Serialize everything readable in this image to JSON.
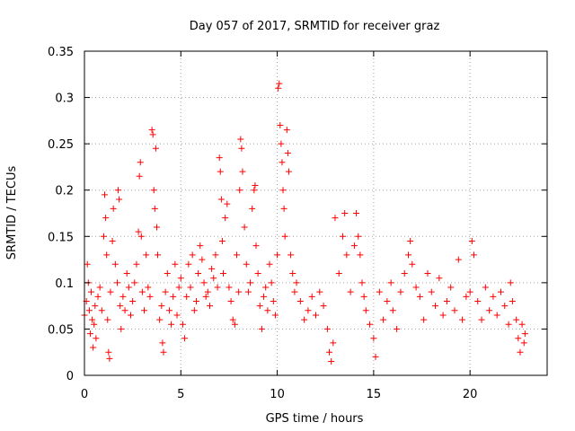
{
  "chart_data": {
    "type": "scatter",
    "title": "Day 057 of 2017, SRMTID for receiver graz",
    "xlabel": "GPS time / hours",
    "ylabel": "SRMTID / TECUs",
    "xlim": [
      0,
      24
    ],
    "ylim": [
      0,
      0.35
    ],
    "xticks": [
      0,
      5,
      10,
      15,
      20
    ],
    "xtick_labels": [
      "0",
      "5",
      "10",
      "15",
      "20"
    ],
    "yticks": [
      0,
      0.05,
      0.1,
      0.15,
      0.2,
      0.25,
      0.3,
      0.35
    ],
    "ytick_labels": [
      "0",
      "0.05",
      "0.1",
      "0.15",
      "0.2",
      "0.25",
      "0.3",
      "0.35"
    ],
    "grid": true,
    "marker": "+",
    "colors": {
      "series": "#ff0000",
      "grid": "#a0a0a0",
      "axis": "#000000"
    },
    "points": [
      [
        0.0,
        0.065
      ],
      [
        0.1,
        0.08
      ],
      [
        0.15,
        0.12
      ],
      [
        0.2,
        0.1
      ],
      [
        0.25,
        0.07
      ],
      [
        0.3,
        0.045
      ],
      [
        0.35,
        0.09
      ],
      [
        0.4,
        0.06
      ],
      [
        0.45,
        0.03
      ],
      [
        0.5,
        0.055
      ],
      [
        0.55,
        0.075
      ],
      [
        0.6,
        0.04
      ],
      [
        0.7,
        0.085
      ],
      [
        0.8,
        0.095
      ],
      [
        0.9,
        0.07
      ],
      [
        1.0,
        0.15
      ],
      [
        1.05,
        0.195
      ],
      [
        1.1,
        0.17
      ],
      [
        1.15,
        0.13
      ],
      [
        1.2,
        0.06
      ],
      [
        1.25,
        0.025
      ],
      [
        1.3,
        0.018
      ],
      [
        1.35,
        0.09
      ],
      [
        1.45,
        0.145
      ],
      [
        1.5,
        0.18
      ],
      [
        1.6,
        0.12
      ],
      [
        1.7,
        0.1
      ],
      [
        1.75,
        0.2
      ],
      [
        1.8,
        0.19
      ],
      [
        1.85,
        0.075
      ],
      [
        1.9,
        0.05
      ],
      [
        2.0,
        0.085
      ],
      [
        2.1,
        0.07
      ],
      [
        2.2,
        0.11
      ],
      [
        2.3,
        0.095
      ],
      [
        2.4,
        0.065
      ],
      [
        2.5,
        0.08
      ],
      [
        2.6,
        0.1
      ],
      [
        2.7,
        0.12
      ],
      [
        2.8,
        0.155
      ],
      [
        2.85,
        0.215
      ],
      [
        2.9,
        0.23
      ],
      [
        2.95,
        0.15
      ],
      [
        3.0,
        0.09
      ],
      [
        3.1,
        0.07
      ],
      [
        3.2,
        0.13
      ],
      [
        3.3,
        0.095
      ],
      [
        3.4,
        0.085
      ],
      [
        3.5,
        0.265
      ],
      [
        3.55,
        0.26
      ],
      [
        3.6,
        0.2
      ],
      [
        3.65,
        0.18
      ],
      [
        3.7,
        0.245
      ],
      [
        3.75,
        0.16
      ],
      [
        3.8,
        0.13
      ],
      [
        3.9,
        0.06
      ],
      [
        4.0,
        0.075
      ],
      [
        4.05,
        0.035
      ],
      [
        4.1,
        0.025
      ],
      [
        4.2,
        0.09
      ],
      [
        4.3,
        0.11
      ],
      [
        4.4,
        0.07
      ],
      [
        4.5,
        0.055
      ],
      [
        4.6,
        0.085
      ],
      [
        4.7,
        0.12
      ],
      [
        4.8,
        0.065
      ],
      [
        4.9,
        0.095
      ],
      [
        5.0,
        0.105
      ],
      [
        5.1,
        0.055
      ],
      [
        5.2,
        0.04
      ],
      [
        5.3,
        0.085
      ],
      [
        5.4,
        0.12
      ],
      [
        5.5,
        0.095
      ],
      [
        5.6,
        0.13
      ],
      [
        5.7,
        0.07
      ],
      [
        5.8,
        0.08
      ],
      [
        5.9,
        0.11
      ],
      [
        6.0,
        0.14
      ],
      [
        6.1,
        0.125
      ],
      [
        6.2,
        0.1
      ],
      [
        6.3,
        0.085
      ],
      [
        6.4,
        0.09
      ],
      [
        6.5,
        0.075
      ],
      [
        6.6,
        0.115
      ],
      [
        6.7,
        0.105
      ],
      [
        6.8,
        0.13
      ],
      [
        6.9,
        0.095
      ],
      [
        7.0,
        0.235
      ],
      [
        7.05,
        0.22
      ],
      [
        7.1,
        0.19
      ],
      [
        7.15,
        0.145
      ],
      [
        7.2,
        0.11
      ],
      [
        7.3,
        0.17
      ],
      [
        7.4,
        0.185
      ],
      [
        7.5,
        0.095
      ],
      [
        7.6,
        0.08
      ],
      [
        7.7,
        0.06
      ],
      [
        7.8,
        0.055
      ],
      [
        7.9,
        0.13
      ],
      [
        8.0,
        0.09
      ],
      [
        8.05,
        0.2
      ],
      [
        8.1,
        0.255
      ],
      [
        8.15,
        0.245
      ],
      [
        8.2,
        0.22
      ],
      [
        8.3,
        0.16
      ],
      [
        8.4,
        0.12
      ],
      [
        8.5,
        0.09
      ],
      [
        8.6,
        0.1
      ],
      [
        8.7,
        0.18
      ],
      [
        8.8,
        0.2
      ],
      [
        8.85,
        0.205
      ],
      [
        8.9,
        0.14
      ],
      [
        9.0,
        0.11
      ],
      [
        9.1,
        0.075
      ],
      [
        9.2,
        0.05
      ],
      [
        9.3,
        0.085
      ],
      [
        9.4,
        0.095
      ],
      [
        9.5,
        0.07
      ],
      [
        9.6,
        0.12
      ],
      [
        9.7,
        0.1
      ],
      [
        9.8,
        0.08
      ],
      [
        9.9,
        0.065
      ],
      [
        10.0,
        0.13
      ],
      [
        10.05,
        0.31
      ],
      [
        10.1,
        0.315
      ],
      [
        10.15,
        0.27
      ],
      [
        10.2,
        0.25
      ],
      [
        10.25,
        0.23
      ],
      [
        10.3,
        0.2
      ],
      [
        10.35,
        0.18
      ],
      [
        10.4,
        0.15
      ],
      [
        10.5,
        0.265
      ],
      [
        10.55,
        0.24
      ],
      [
        10.6,
        0.22
      ],
      [
        10.7,
        0.13
      ],
      [
        10.8,
        0.11
      ],
      [
        10.9,
        0.09
      ],
      [
        11.0,
        0.1
      ],
      [
        11.2,
        0.08
      ],
      [
        11.4,
        0.06
      ],
      [
        11.6,
        0.07
      ],
      [
        11.8,
        0.085
      ],
      [
        12.0,
        0.065
      ],
      [
        12.2,
        0.09
      ],
      [
        12.4,
        0.075
      ],
      [
        12.6,
        0.05
      ],
      [
        12.7,
        0.025
      ],
      [
        12.8,
        0.015
      ],
      [
        12.9,
        0.035
      ],
      [
        13.0,
        0.17
      ],
      [
        13.2,
        0.11
      ],
      [
        13.4,
        0.15
      ],
      [
        13.5,
        0.175
      ],
      [
        13.6,
        0.13
      ],
      [
        13.8,
        0.09
      ],
      [
        14.0,
        0.14
      ],
      [
        14.1,
        0.175
      ],
      [
        14.2,
        0.15
      ],
      [
        14.3,
        0.13
      ],
      [
        14.4,
        0.1
      ],
      [
        14.5,
        0.085
      ],
      [
        14.6,
        0.07
      ],
      [
        14.8,
        0.055
      ],
      [
        15.0,
        0.04
      ],
      [
        15.1,
        0.02
      ],
      [
        15.3,
        0.09
      ],
      [
        15.5,
        0.06
      ],
      [
        15.7,
        0.08
      ],
      [
        15.9,
        0.1
      ],
      [
        16.0,
        0.07
      ],
      [
        16.2,
        0.05
      ],
      [
        16.4,
        0.09
      ],
      [
        16.6,
        0.11
      ],
      [
        16.8,
        0.13
      ],
      [
        16.9,
        0.145
      ],
      [
        17.0,
        0.12
      ],
      [
        17.2,
        0.095
      ],
      [
        17.4,
        0.085
      ],
      [
        17.6,
        0.06
      ],
      [
        17.8,
        0.11
      ],
      [
        18.0,
        0.09
      ],
      [
        18.2,
        0.075
      ],
      [
        18.4,
        0.105
      ],
      [
        18.6,
        0.065
      ],
      [
        18.8,
        0.08
      ],
      [
        19.0,
        0.095
      ],
      [
        19.2,
        0.07
      ],
      [
        19.4,
        0.125
      ],
      [
        19.6,
        0.06
      ],
      [
        19.8,
        0.085
      ],
      [
        20.0,
        0.09
      ],
      [
        20.1,
        0.145
      ],
      [
        20.2,
        0.13
      ],
      [
        20.4,
        0.08
      ],
      [
        20.6,
        0.06
      ],
      [
        20.8,
        0.095
      ],
      [
        21.0,
        0.07
      ],
      [
        21.2,
        0.085
      ],
      [
        21.4,
        0.065
      ],
      [
        21.6,
        0.09
      ],
      [
        21.8,
        0.075
      ],
      [
        22.0,
        0.055
      ],
      [
        22.1,
        0.1
      ],
      [
        22.2,
        0.08
      ],
      [
        22.4,
        0.06
      ],
      [
        22.5,
        0.04
      ],
      [
        22.6,
        0.025
      ],
      [
        22.7,
        0.055
      ],
      [
        22.8,
        0.035
      ],
      [
        22.85,
        0.045
      ]
    ]
  }
}
